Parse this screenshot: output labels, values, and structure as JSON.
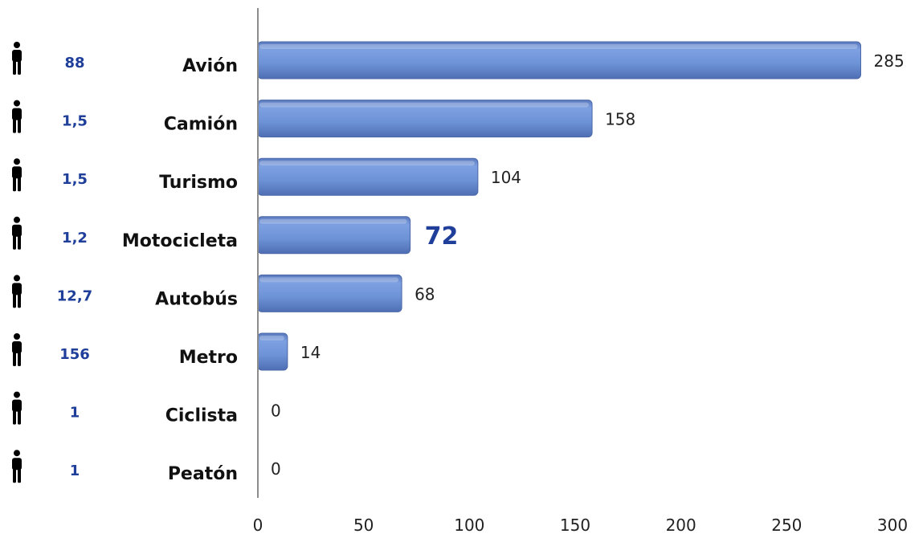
{
  "chart_data": {
    "type": "bar",
    "orientation": "horizontal",
    "categories": [
      "Avión",
      "Camión",
      "Turismo",
      "Motocicleta",
      "Autobús",
      "Metro",
      "Ciclista",
      "Peatón"
    ],
    "values": [
      285,
      158,
      104,
      72,
      68,
      14,
      0,
      0
    ],
    "occupancy": [
      "88",
      "1,5",
      "1,5",
      "1,2",
      "12,7",
      "156",
      "1",
      "1"
    ],
    "highlight_index": 3,
    "icon": "person-icon",
    "xlim": [
      0,
      300
    ],
    "xticks": [
      0,
      50,
      100,
      150,
      200,
      250,
      300
    ],
    "grid": false,
    "bar_color": "#6f94d8",
    "highlight_text_color": "#1f3f9a"
  }
}
